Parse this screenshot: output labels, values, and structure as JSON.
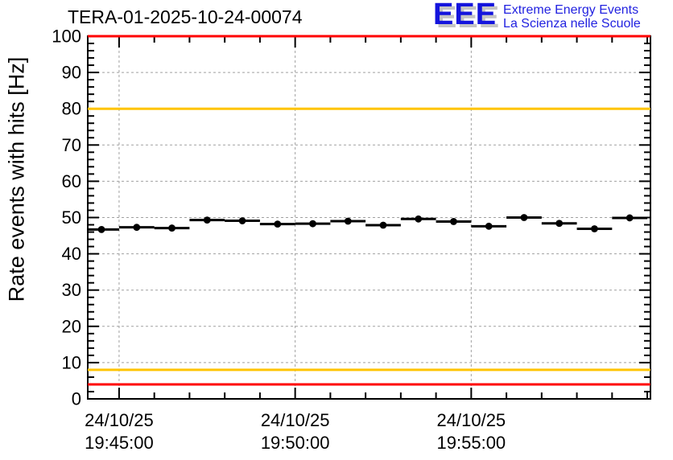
{
  "header": {
    "logo": {
      "acronym": "EEE",
      "line1": "Extreme Energy Events",
      "line2": "La Scienza nelle Scuole",
      "acronym_color": "#1414dd",
      "text_color": "#2222e0",
      "shadow_color": "#c4c4c4"
    }
  },
  "colors": {
    "alarm_red": "#ff0000",
    "warning_yellow": "#ffc400",
    "grid_gray": "#a0a0a0",
    "frame_black": "#000000",
    "background": "#ffffff"
  },
  "chart_data": {
    "type": "scatter",
    "title": "TERA-01-2025-10-24-00074",
    "xlabel": "",
    "ylabel": "Rate events with hits [Hz]",
    "ylim": [
      0,
      100
    ],
    "y_major_tick_step": 10,
    "y_minor_tick_step": 2,
    "y_tick_labels": [
      "0",
      "10",
      "20",
      "30",
      "40",
      "50",
      "60",
      "70",
      "80",
      "90",
      "100"
    ],
    "x_axis": {
      "date": "24/10/25",
      "minutes_origin": "19:00:00",
      "start_minutes": 44.11,
      "end_minutes": 60.09,
      "minor_tick_step_minutes": 1,
      "major_ticks": [
        {
          "minutes": 45,
          "label_date": "24/10/25",
          "label_time": "19:45:00"
        },
        {
          "minutes": 50,
          "label_date": "24/10/25",
          "label_time": "19:50:00"
        },
        {
          "minutes": 55,
          "label_date": "24/10/25",
          "label_time": "19:55:00"
        }
      ]
    },
    "grid": {
      "horizontal_step": 10,
      "vertical_at_major_ticks": true,
      "style": "dashed",
      "color": "#a0a0a0"
    },
    "threshold_lines": [
      {
        "name": "upper-alarm",
        "hz": 100,
        "color": "#ff0000"
      },
      {
        "name": "upper-warning",
        "hz": 80,
        "color": "#ffc400"
      },
      {
        "name": "lower-warning",
        "hz": 8,
        "color": "#ffc400"
      },
      {
        "name": "lower-alarm",
        "hz": 4,
        "color": "#ff0000"
      }
    ],
    "series": [
      {
        "name": "rate-events-with-hits",
        "marker": "filled-circle",
        "color": "#000000",
        "bin_width_minutes": 1,
        "points": [
          {
            "time": "19:44:30",
            "minutes": 44.5,
            "hz": 46.7
          },
          {
            "time": "19:45:30",
            "minutes": 45.5,
            "hz": 47.3
          },
          {
            "time": "19:46:30",
            "minutes": 46.5,
            "hz": 47.1
          },
          {
            "time": "19:47:30",
            "minutes": 47.5,
            "hz": 49.3
          },
          {
            "time": "19:48:30",
            "minutes": 48.5,
            "hz": 49.1
          },
          {
            "time": "19:49:30",
            "minutes": 49.5,
            "hz": 48.2
          },
          {
            "time": "19:50:30",
            "minutes": 50.5,
            "hz": 48.3
          },
          {
            "time": "19:51:30",
            "minutes": 51.5,
            "hz": 49.0
          },
          {
            "time": "19:52:30",
            "minutes": 52.5,
            "hz": 47.9
          },
          {
            "time": "19:53:30",
            "minutes": 53.5,
            "hz": 49.6
          },
          {
            "time": "19:54:30",
            "minutes": 54.5,
            "hz": 48.9
          },
          {
            "time": "19:55:30",
            "minutes": 55.5,
            "hz": 47.6
          },
          {
            "time": "19:56:30",
            "minutes": 56.5,
            "hz": 50.0
          },
          {
            "time": "19:57:30",
            "minutes": 57.5,
            "hz": 48.4
          },
          {
            "time": "19:58:30",
            "minutes": 58.5,
            "hz": 46.9
          },
          {
            "time": "19:59:30",
            "minutes": 59.5,
            "hz": 49.9
          }
        ]
      }
    ]
  }
}
